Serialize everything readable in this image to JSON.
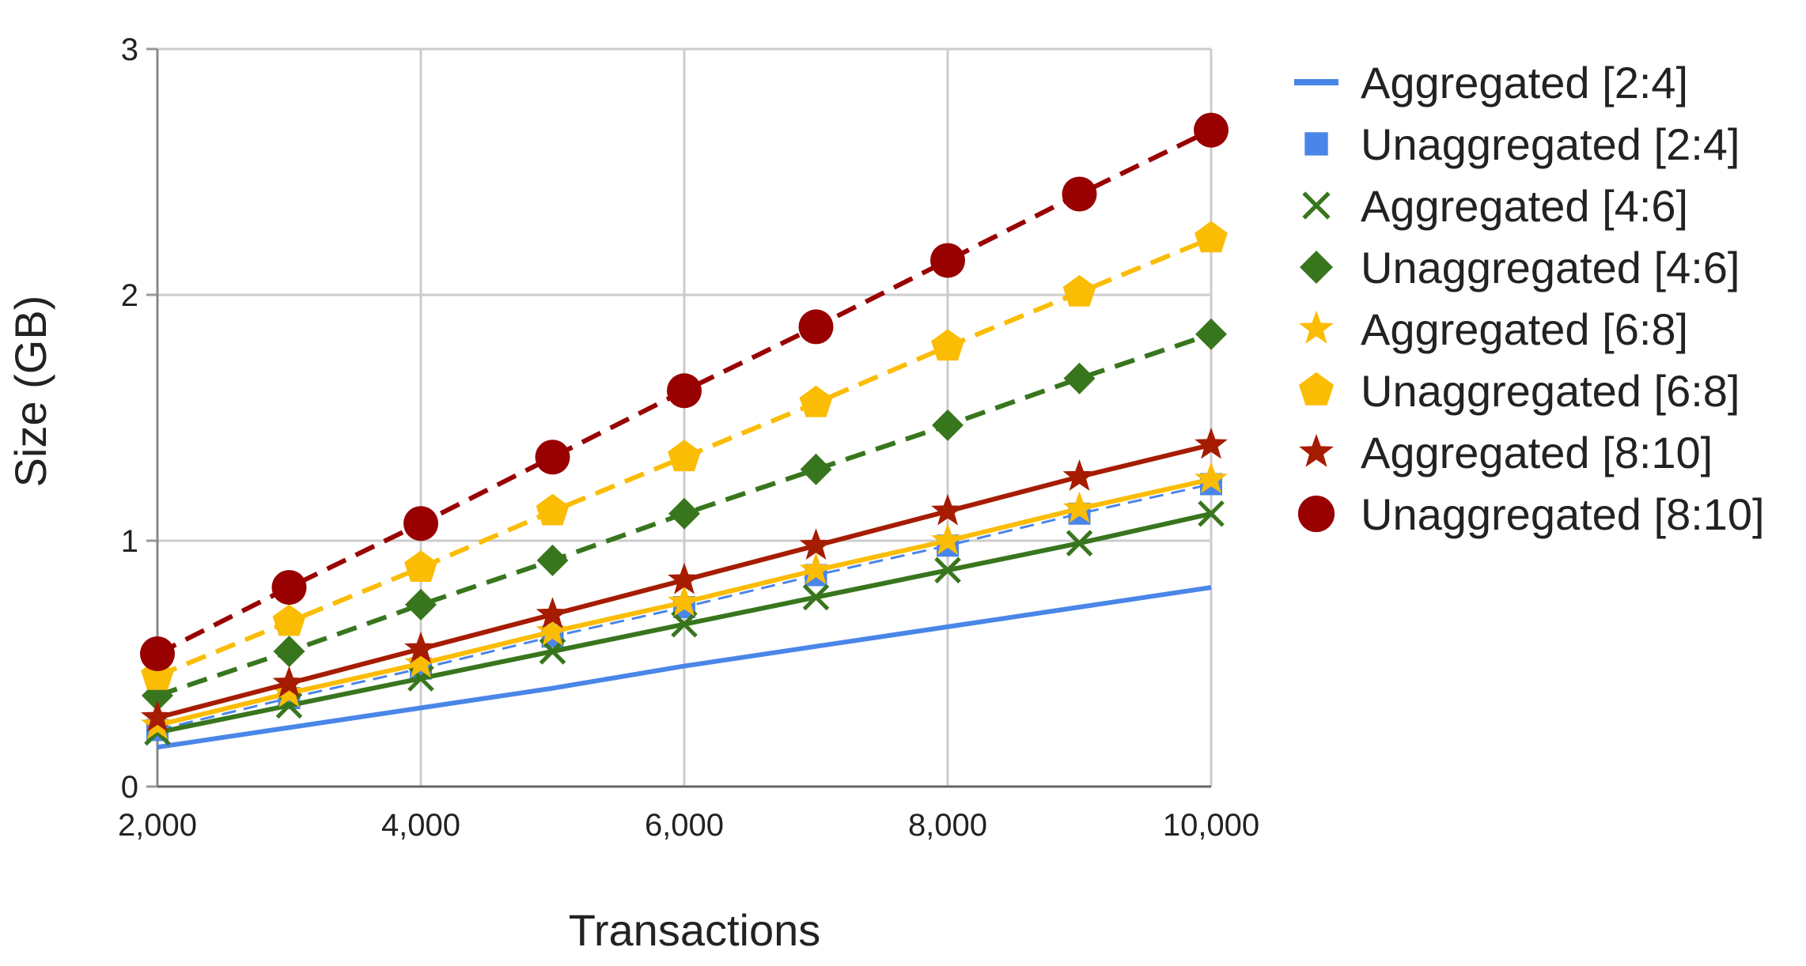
{
  "chart_data": {
    "type": "line",
    "xlabel": "Transactions",
    "ylabel": "Size (GB)",
    "xlim": [
      2000,
      10000
    ],
    "ylim": [
      0,
      3
    ],
    "x_ticks": [
      "2,000",
      "4,000",
      "6,000",
      "8,000",
      "10,000"
    ],
    "x_tick_values": [
      2000,
      4000,
      6000,
      8000,
      10000
    ],
    "y_ticks": [
      "0",
      "1",
      "2",
      "3"
    ],
    "y_tick_values": [
      0,
      1,
      2,
      3
    ],
    "grid": true,
    "legend_position": "right",
    "x": [
      2000,
      3000,
      4000,
      5000,
      6000,
      7000,
      8000,
      9000,
      10000
    ],
    "series": [
      {
        "name": "Aggregated [2:4]",
        "color": "#4a86e8",
        "line": "solid",
        "marker": "none",
        "values": [
          0.16,
          0.24,
          0.32,
          0.4,
          0.49,
          0.57,
          0.65,
          0.73,
          0.81
        ]
      },
      {
        "name": "Unaggregated [2:4]",
        "color": "#4a86e8",
        "line": "dashed-thin",
        "marker": "square",
        "values": [
          0.23,
          0.36,
          0.48,
          0.61,
          0.73,
          0.86,
          0.98,
          1.11,
          1.23
        ]
      },
      {
        "name": "Aggregated [4:6]",
        "color": "#38761d",
        "line": "solid",
        "marker": "x",
        "values": [
          0.22,
          0.33,
          0.44,
          0.55,
          0.66,
          0.77,
          0.88,
          0.99,
          1.11
        ]
      },
      {
        "name": "Unaggregated [4:6]",
        "color": "#38761d",
        "line": "dashed",
        "marker": "diamond",
        "values": [
          0.37,
          0.55,
          0.74,
          0.92,
          1.11,
          1.29,
          1.47,
          1.66,
          1.84
        ]
      },
      {
        "name": "Aggregated [6:8]",
        "color": "#fbbc04",
        "line": "solid",
        "marker": "star",
        "values": [
          0.25,
          0.38,
          0.5,
          0.63,
          0.75,
          0.88,
          1.0,
          1.13,
          1.25
        ]
      },
      {
        "name": "Unaggregated [6:8]",
        "color": "#fbbc04",
        "line": "dashed",
        "marker": "pentagon",
        "values": [
          0.45,
          0.67,
          0.89,
          1.12,
          1.34,
          1.56,
          1.79,
          2.01,
          2.23
        ]
      },
      {
        "name": "Aggregated [8:10]",
        "color": "#a61c00",
        "line": "solid",
        "marker": "star",
        "values": [
          0.28,
          0.42,
          0.56,
          0.7,
          0.84,
          0.98,
          1.12,
          1.26,
          1.39
        ]
      },
      {
        "name": "Unaggregated [8:10]",
        "color": "#990000",
        "line": "dashed",
        "marker": "circle",
        "values": [
          0.54,
          0.81,
          1.07,
          1.34,
          1.61,
          1.87,
          2.14,
          2.41,
          2.67
        ]
      }
    ]
  }
}
